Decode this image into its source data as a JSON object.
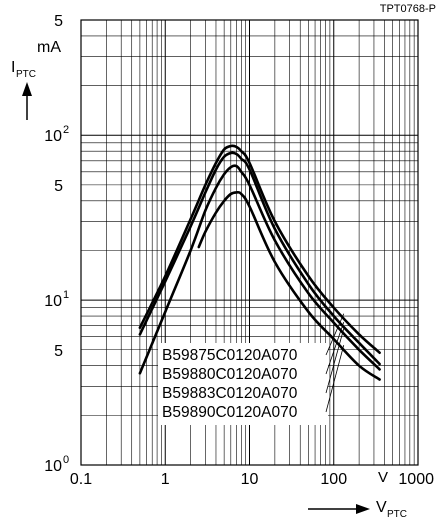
{
  "figure_id": "TPT0768-P",
  "chart_data": {
    "type": "line",
    "title": "",
    "x_scale": "log",
    "y_scale": "log",
    "xlim": [
      0.1,
      1000
    ],
    "ylim": [
      1,
      500
    ],
    "ylabel_main": "I",
    "ylabel_sub": "PTC",
    "ylabel_unit": "mA",
    "xlabel_main": "V",
    "xlabel_sub": "PTC",
    "x_unit": "V",
    "x_ticks": [
      {
        "value": 0.1,
        "label": "0.1"
      },
      {
        "value": 1,
        "label": "1"
      },
      {
        "value": 10,
        "label": "10"
      },
      {
        "value": 100,
        "label": "100"
      },
      {
        "value": 1000,
        "label": "1000"
      }
    ],
    "y_ticks": [
      {
        "value": 1,
        "label": "10",
        "exp": "0"
      },
      {
        "value": 5,
        "label": "5",
        "exp": ""
      },
      {
        "value": 10,
        "label": "10",
        "exp": "1"
      },
      {
        "value": 50,
        "label": "5",
        "exp": ""
      },
      {
        "value": 100,
        "label": "10",
        "exp": "2"
      },
      {
        "value": 500,
        "label": "5",
        "exp": ""
      }
    ],
    "grid": true,
    "legend_position": "bottom-center",
    "series": [
      {
        "name": "B59875C0120A070",
        "x": [
          0.5,
          1,
          2,
          3,
          4,
          5,
          6,
          7,
          8,
          10,
          20,
          50,
          100,
          200,
          350
        ],
        "y": [
          6.8,
          14,
          31,
          50,
          68,
          82,
          86,
          85,
          80,
          68,
          30,
          14,
          9,
          6.2,
          4.8
        ]
      },
      {
        "name": "B59880C0120A070",
        "x": [
          0.5,
          1,
          2,
          3,
          4,
          5,
          6,
          7,
          8,
          10,
          20,
          50,
          100,
          200,
          350
        ],
        "y": [
          6.2,
          13,
          28,
          45,
          62,
          74,
          78,
          77,
          72,
          62,
          27,
          12.5,
          8,
          5.5,
          4.1
        ]
      },
      {
        "name": "B59883C0120A070",
        "x": [
          0.5,
          1,
          2,
          3,
          4,
          5,
          6,
          7,
          8,
          10,
          20,
          50,
          100,
          200,
          350
        ],
        "y": [
          3.6,
          8.5,
          20,
          35,
          48,
          58,
          64,
          65,
          60,
          50,
          23,
          11,
          7.3,
          5,
          3.8
        ]
      },
      {
        "name": "B59890C0120A070",
        "x": [
          2.5,
          3,
          4,
          5,
          6,
          7,
          8,
          10,
          20,
          50,
          100,
          200,
          350
        ],
        "y": [
          21,
          26,
          34,
          40,
          44,
          45,
          44,
          37,
          17,
          8.5,
          5.8,
          4,
          3.3
        ]
      }
    ]
  }
}
